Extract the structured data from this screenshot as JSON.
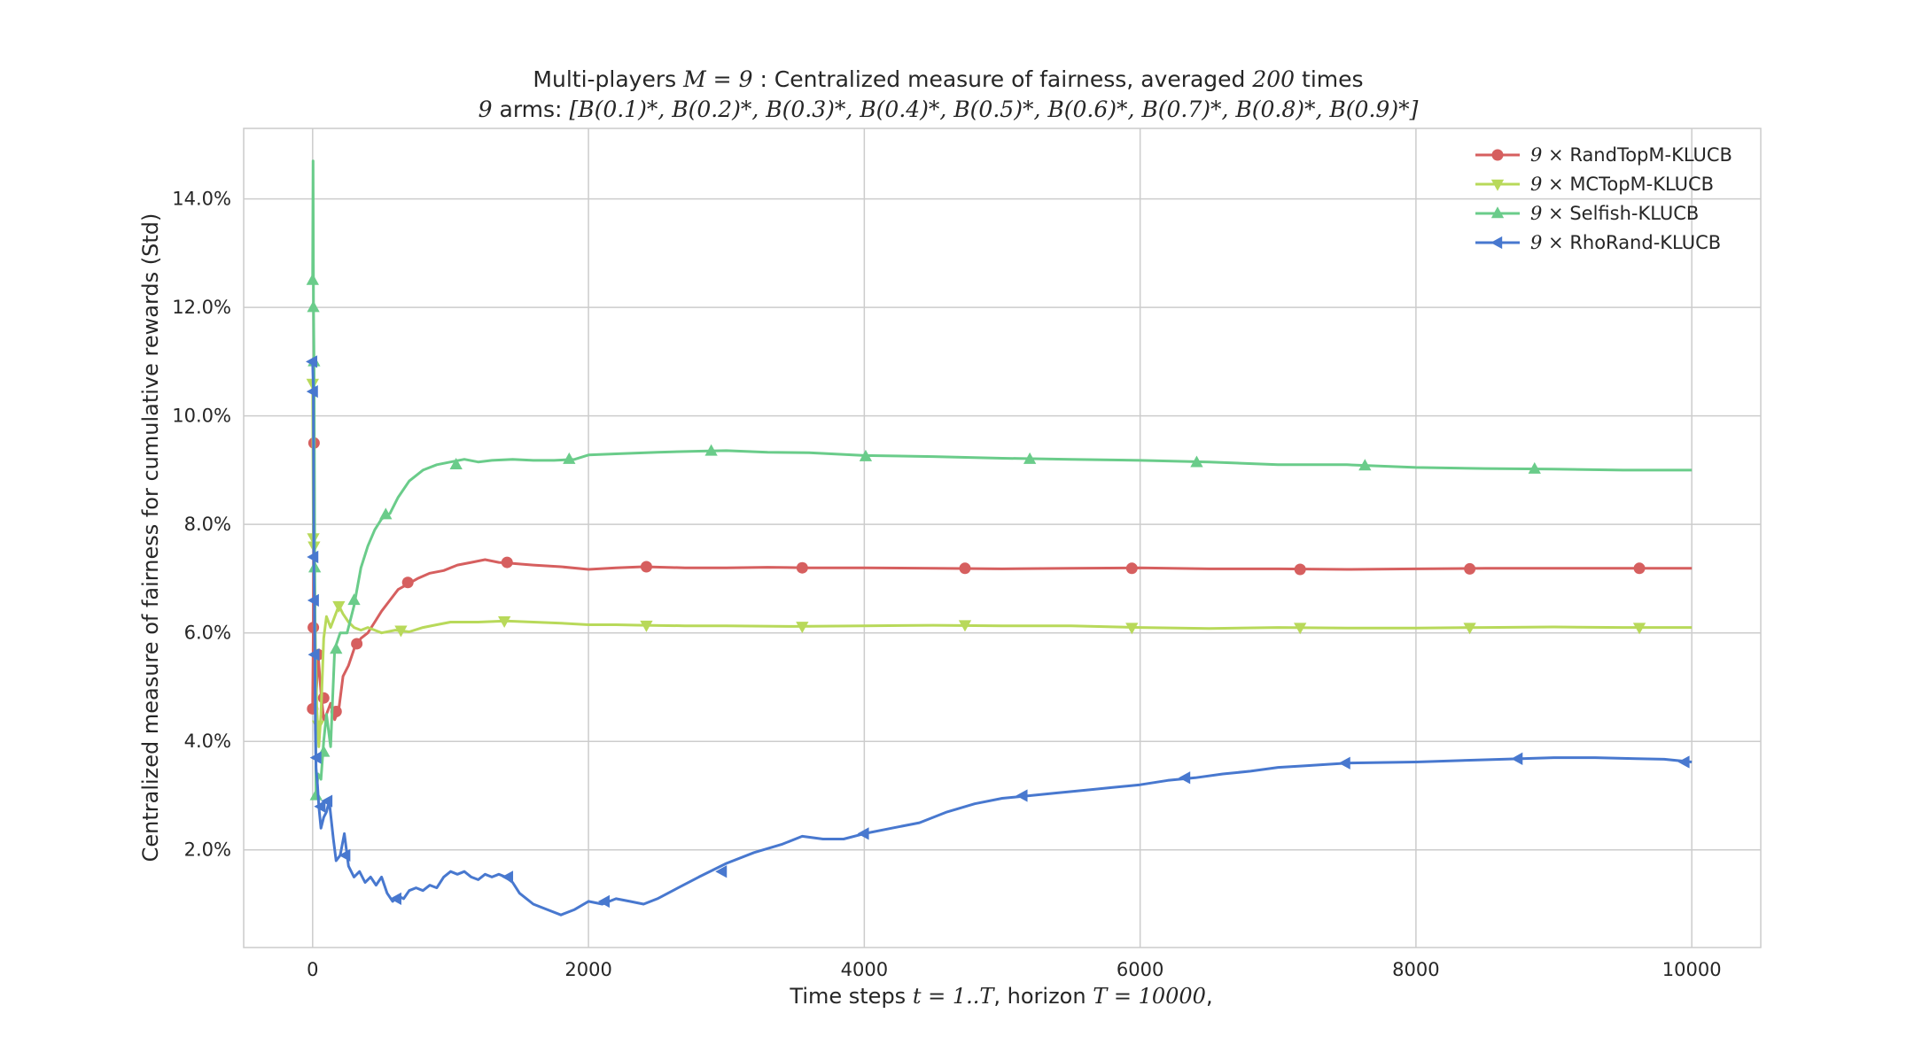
{
  "chart_data": {
    "type": "line",
    "title_line1": {
      "prefix": "Multi-players",
      "math": "M = 9",
      "suffix": ": Centralized measure of fairness, averaged",
      "count": "200",
      "end": "times"
    },
    "title_line2": {
      "count": "9",
      "prefix": "arms:",
      "arms": "[B(0.1)*, B(0.2)*, B(0.3)*, B(0.4)*, B(0.5)*, B(0.6)*, B(0.7)*, B(0.8)*, B(0.9)*]"
    },
    "xlabel": {
      "prefix": "Time steps",
      "math1": "t = 1..T",
      "middle": ", horizon",
      "math2": "T = 10000",
      "end": ","
    },
    "ylabel": "Centralized measure of fairness for cumulative rewards (Std)",
    "xlim": [
      -500,
      10500
    ],
    "ylim": [
      0.2,
      15.3
    ],
    "x_ticks": [
      0,
      2000,
      4000,
      6000,
      8000,
      10000
    ],
    "x_tick_labels": [
      "0",
      "2000",
      "4000",
      "6000",
      "8000",
      "10000"
    ],
    "y_ticks": [
      2,
      4,
      6,
      8,
      10,
      12,
      14
    ],
    "y_tick_labels": [
      "2.0%",
      "4.0%",
      "6.0%",
      "8.0%",
      "10.0%",
      "12.0%",
      "14.0%"
    ],
    "grid": true,
    "legend_position": "top-right",
    "legend_prefix": "9 ×",
    "series": [
      {
        "name": "RandTopM-KLUCB",
        "color": "#d65f5f",
        "marker": "circle",
        "points": [
          [
            0,
            4.6
          ],
          [
            5,
            6.1
          ],
          [
            10,
            9.5
          ],
          [
            15,
            5.6
          ],
          [
            25,
            4.8
          ],
          [
            40,
            5.6
          ],
          [
            60,
            4.9
          ],
          [
            80,
            4.4
          ],
          [
            100,
            4.5
          ],
          [
            130,
            4.7
          ],
          [
            160,
            4.4
          ],
          [
            190,
            4.6
          ],
          [
            220,
            5.2
          ],
          [
            260,
            5.4
          ],
          [
            300,
            5.7
          ],
          [
            350,
            5.9
          ],
          [
            400,
            6.0
          ],
          [
            450,
            6.2
          ],
          [
            500,
            6.4
          ],
          [
            560,
            6.6
          ],
          [
            620,
            6.8
          ],
          [
            690,
            6.9
          ],
          [
            760,
            7.0
          ],
          [
            850,
            7.1
          ],
          [
            950,
            7.15
          ],
          [
            1050,
            7.25
          ],
          [
            1150,
            7.3
          ],
          [
            1250,
            7.35
          ],
          [
            1350,
            7.3
          ],
          [
            1450,
            7.28
          ],
          [
            1600,
            7.25
          ],
          [
            1800,
            7.22
          ],
          [
            2000,
            7.17
          ],
          [
            2200,
            7.2
          ],
          [
            2400,
            7.22
          ],
          [
            2700,
            7.2
          ],
          [
            3000,
            7.2
          ],
          [
            3300,
            7.21
          ],
          [
            3600,
            7.2
          ],
          [
            4000,
            7.2
          ],
          [
            4500,
            7.19
          ],
          [
            5000,
            7.18
          ],
          [
            5500,
            7.19
          ],
          [
            6000,
            7.2
          ],
          [
            6500,
            7.18
          ],
          [
            7000,
            7.18
          ],
          [
            7500,
            7.17
          ],
          [
            8000,
            7.18
          ],
          [
            8500,
            7.19
          ],
          [
            9000,
            7.19
          ],
          [
            9500,
            7.19
          ],
          [
            10000,
            7.19
          ]
        ],
        "marker_points": [
          [
            5,
            6.1
          ],
          [
            10,
            9.5
          ],
          [
            0,
            4.6
          ],
          [
            40,
            5.6
          ],
          [
            80,
            4.8
          ],
          [
            170,
            4.55
          ],
          [
            320,
            5.8
          ],
          [
            690,
            6.93
          ],
          [
            1410,
            7.3
          ],
          [
            2420,
            7.22
          ],
          [
            3550,
            7.2
          ],
          [
            4730,
            7.19
          ],
          [
            5940,
            7.19
          ],
          [
            7160,
            7.17
          ],
          [
            8390,
            7.18
          ],
          [
            9620,
            7.19
          ]
        ]
      },
      {
        "name": "MCTopM-KLUCB",
        "color": "#b8d95a",
        "marker": "triangle-down",
        "points": [
          [
            0,
            10.6
          ],
          [
            5,
            7.8
          ],
          [
            10,
            7.6
          ],
          [
            20,
            5.8
          ],
          [
            30,
            4.6
          ],
          [
            45,
            3.9
          ],
          [
            60,
            4.5
          ],
          [
            80,
            5.9
          ],
          [
            100,
            6.3
          ],
          [
            130,
            6.1
          ],
          [
            160,
            6.3
          ],
          [
            190,
            6.5
          ],
          [
            220,
            6.35
          ],
          [
            260,
            6.2
          ],
          [
            300,
            6.1
          ],
          [
            350,
            6.05
          ],
          [
            400,
            6.1
          ],
          [
            450,
            6.05
          ],
          [
            500,
            6.0
          ],
          [
            600,
            6.05
          ],
          [
            700,
            6.02
          ],
          [
            800,
            6.1
          ],
          [
            900,
            6.15
          ],
          [
            1000,
            6.2
          ],
          [
            1200,
            6.2
          ],
          [
            1400,
            6.22
          ],
          [
            1600,
            6.2
          ],
          [
            1800,
            6.18
          ],
          [
            2000,
            6.15
          ],
          [
            2200,
            6.15
          ],
          [
            2400,
            6.14
          ],
          [
            2700,
            6.13
          ],
          [
            3000,
            6.13
          ],
          [
            3500,
            6.12
          ],
          [
            4000,
            6.13
          ],
          [
            4500,
            6.14
          ],
          [
            5000,
            6.13
          ],
          [
            5500,
            6.13
          ],
          [
            6000,
            6.1
          ],
          [
            6500,
            6.08
          ],
          [
            7000,
            6.1
          ],
          [
            7500,
            6.09
          ],
          [
            8000,
            6.09
          ],
          [
            8500,
            6.1
          ],
          [
            9000,
            6.11
          ],
          [
            9500,
            6.1
          ],
          [
            10000,
            6.1
          ]
        ],
        "marker_points": [
          [
            0,
            10.6
          ],
          [
            5,
            7.75
          ],
          [
            10,
            7.6
          ],
          [
            40,
            4.3
          ],
          [
            190,
            6.5
          ],
          [
            640,
            6.05
          ],
          [
            1390,
            6.22
          ],
          [
            2420,
            6.14
          ],
          [
            3550,
            6.12
          ],
          [
            4730,
            6.15
          ],
          [
            5940,
            6.1
          ],
          [
            7160,
            6.1
          ],
          [
            8390,
            6.1
          ],
          [
            9620,
            6.1
          ]
        ]
      },
      {
        "name": "Selfish-KLUCB",
        "color": "#6acc8a",
        "marker": "triangle-up",
        "points": [
          [
            0,
            12.5
          ],
          [
            3,
            14.7
          ],
          [
            6,
            12.0
          ],
          [
            10,
            11.0
          ],
          [
            15,
            7.2
          ],
          [
            25,
            3.0
          ],
          [
            40,
            3.4
          ],
          [
            60,
            3.3
          ],
          [
            80,
            4.0
          ],
          [
            100,
            4.5
          ],
          [
            130,
            3.9
          ],
          [
            160,
            5.7
          ],
          [
            200,
            6.0
          ],
          [
            250,
            6.0
          ],
          [
            300,
            6.5
          ],
          [
            350,
            7.2
          ],
          [
            400,
            7.6
          ],
          [
            450,
            7.9
          ],
          [
            500,
            8.1
          ],
          [
            560,
            8.2
          ],
          [
            620,
            8.5
          ],
          [
            700,
            8.8
          ],
          [
            800,
            9.0
          ],
          [
            900,
            9.1
          ],
          [
            1000,
            9.15
          ],
          [
            1100,
            9.2
          ],
          [
            1200,
            9.15
          ],
          [
            1300,
            9.18
          ],
          [
            1450,
            9.2
          ],
          [
            1600,
            9.18
          ],
          [
            1750,
            9.18
          ],
          [
            1900,
            9.2
          ],
          [
            2000,
            9.28
          ],
          [
            2200,
            9.3
          ],
          [
            2500,
            9.33
          ],
          [
            2800,
            9.35
          ],
          [
            3000,
            9.36
          ],
          [
            3300,
            9.33
          ],
          [
            3600,
            9.32
          ],
          [
            4000,
            9.27
          ],
          [
            4500,
            9.25
          ],
          [
            5000,
            9.22
          ],
          [
            5500,
            9.2
          ],
          [
            6000,
            9.18
          ],
          [
            6500,
            9.15
          ],
          [
            7000,
            9.1
          ],
          [
            7500,
            9.1
          ],
          [
            8000,
            9.05
          ],
          [
            8500,
            9.03
          ],
          [
            9000,
            9.02
          ],
          [
            9500,
            9.0
          ],
          [
            10000,
            9.0
          ]
        ],
        "marker_points": [
          [
            0,
            12.5
          ],
          [
            5,
            12.0
          ],
          [
            10,
            11.0
          ],
          [
            15,
            7.2
          ],
          [
            25,
            3.0
          ],
          [
            80,
            3.8
          ],
          [
            170,
            5.7
          ],
          [
            300,
            6.6
          ],
          [
            530,
            8.18
          ],
          [
            1040,
            9.1
          ],
          [
            1860,
            9.2
          ],
          [
            2890,
            9.35
          ],
          [
            4010,
            9.25
          ],
          [
            5200,
            9.2
          ],
          [
            6410,
            9.14
          ],
          [
            7630,
            9.08
          ],
          [
            8860,
            9.02
          ]
        ]
      },
      {
        "name": "RhoRand-KLUCB",
        "color": "#4878cf",
        "marker": "triangle-left",
        "points": [
          [
            0,
            11.0
          ],
          [
            5,
            10.5
          ],
          [
            8,
            7.4
          ],
          [
            12,
            6.6
          ],
          [
            16,
            5.6
          ],
          [
            20,
            4.2
          ],
          [
            25,
            3.5
          ],
          [
            35,
            3.2
          ],
          [
            45,
            2.8
          ],
          [
            60,
            2.4
          ],
          [
            80,
            2.6
          ],
          [
            100,
            2.7
          ],
          [
            120,
            2.9
          ],
          [
            150,
            2.2
          ],
          [
            170,
            1.8
          ],
          [
            200,
            1.9
          ],
          [
            230,
            2.3
          ],
          [
            260,
            1.7
          ],
          [
            300,
            1.5
          ],
          [
            340,
            1.6
          ],
          [
            380,
            1.4
          ],
          [
            420,
            1.5
          ],
          [
            460,
            1.35
          ],
          [
            500,
            1.5
          ],
          [
            540,
            1.2
          ],
          [
            580,
            1.05
          ],
          [
            620,
            1.15
          ],
          [
            660,
            1.1
          ],
          [
            700,
            1.25
          ],
          [
            750,
            1.3
          ],
          [
            800,
            1.25
          ],
          [
            850,
            1.35
          ],
          [
            900,
            1.3
          ],
          [
            950,
            1.5
          ],
          [
            1000,
            1.6
          ],
          [
            1050,
            1.55
          ],
          [
            1100,
            1.6
          ],
          [
            1150,
            1.5
          ],
          [
            1200,
            1.45
          ],
          [
            1250,
            1.55
          ],
          [
            1300,
            1.5
          ],
          [
            1350,
            1.55
          ],
          [
            1400,
            1.5
          ],
          [
            1450,
            1.4
          ],
          [
            1500,
            1.2
          ],
          [
            1600,
            1.0
          ],
          [
            1700,
            0.9
          ],
          [
            1800,
            0.8
          ],
          [
            1900,
            0.9
          ],
          [
            2000,
            1.05
          ],
          [
            2100,
            1.0
          ],
          [
            2200,
            1.1
          ],
          [
            2300,
            1.05
          ],
          [
            2400,
            1.0
          ],
          [
            2500,
            1.1
          ],
          [
            2650,
            1.3
          ],
          [
            2800,
            1.5
          ],
          [
            3000,
            1.75
          ],
          [
            3200,
            1.95
          ],
          [
            3400,
            2.1
          ],
          [
            3550,
            2.25
          ],
          [
            3700,
            2.2
          ],
          [
            3850,
            2.2
          ],
          [
            4000,
            2.3
          ],
          [
            4200,
            2.4
          ],
          [
            4400,
            2.5
          ],
          [
            4600,
            2.7
          ],
          [
            4800,
            2.85
          ],
          [
            5000,
            2.95
          ],
          [
            5200,
            3.0
          ],
          [
            5400,
            3.05
          ],
          [
            5600,
            3.1
          ],
          [
            5800,
            3.15
          ],
          [
            6000,
            3.2
          ],
          [
            6200,
            3.28
          ],
          [
            6400,
            3.33
          ],
          [
            6600,
            3.4
          ],
          [
            6800,
            3.45
          ],
          [
            7000,
            3.52
          ],
          [
            7200,
            3.55
          ],
          [
            7500,
            3.6
          ],
          [
            8000,
            3.62
          ],
          [
            8500,
            3.66
          ],
          [
            9000,
            3.7
          ],
          [
            9300,
            3.7
          ],
          [
            9600,
            3.68
          ],
          [
            9800,
            3.67
          ],
          [
            10000,
            3.62
          ]
        ],
        "marker_points": [
          [
            0,
            11.0
          ],
          [
            5,
            10.45
          ],
          [
            8,
            7.4
          ],
          [
            12,
            6.6
          ],
          [
            16,
            5.6
          ],
          [
            30,
            3.7
          ],
          [
            60,
            2.8
          ],
          [
            110,
            2.9
          ],
          [
            240,
            1.9
          ],
          [
            610,
            1.1
          ],
          [
            1420,
            1.5
          ],
          [
            2120,
            1.05
          ],
          [
            2970,
            1.6
          ],
          [
            4000,
            2.3
          ],
          [
            5150,
            3.0
          ],
          [
            6330,
            3.33
          ],
          [
            7490,
            3.6
          ],
          [
            8740,
            3.68
          ],
          [
            9950,
            3.62
          ]
        ]
      }
    ]
  }
}
